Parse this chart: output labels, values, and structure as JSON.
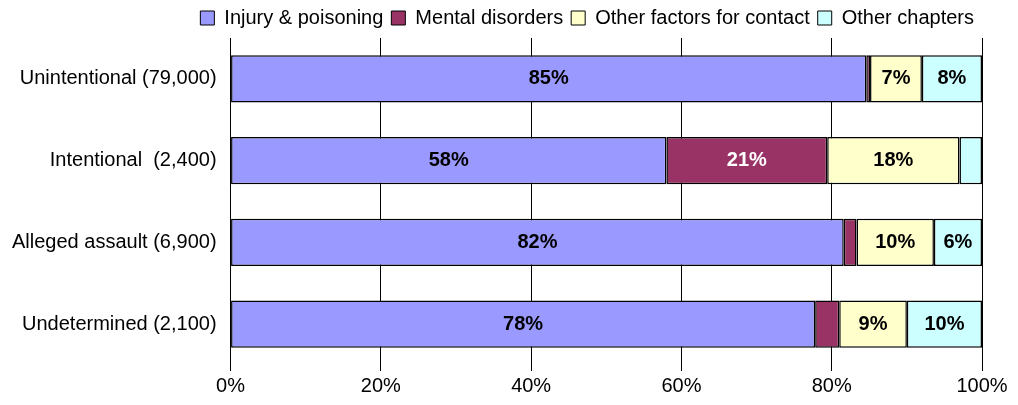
{
  "chart_data": {
    "type": "bar",
    "orientation": "horizontal",
    "stacked": true,
    "categories": [
      "Unintentional (79,000)",
      "Intentional  (2,400)",
      "Alleged assault (6,900)",
      "Undetermined (2,100)"
    ],
    "series": [
      {
        "name": "Injury & poisoning",
        "color": "#9999ff",
        "values": [
          84.6,
          58.0,
          81.6,
          77.8
        ],
        "value_labels": [
          "85%",
          "58%",
          "82%",
          "78%"
        ]
      },
      {
        "name": "Mental disorders",
        "color": "#993366",
        "values": [
          0.5,
          21.4,
          1.7,
          3.2
        ],
        "value_labels": [
          null,
          "21%",
          null,
          null
        ]
      },
      {
        "name": "Other factors for contact",
        "color": "#ffffcc",
        "values": [
          6.9,
          17.6,
          10.3,
          9.0
        ],
        "value_labels": [
          "7%",
          "18%",
          "10%",
          "9%"
        ]
      },
      {
        "name": "Other chapters",
        "color": "#ccffff",
        "values": [
          8.0,
          3.0,
          6.4,
          10.0
        ],
        "value_labels": [
          "8%",
          null,
          "6%",
          "10%"
        ]
      }
    ],
    "xlim": [
      0,
      100
    ],
    "xticks": [
      {
        "value": 0,
        "label": "0%"
      },
      {
        "value": 20,
        "label": "20%"
      },
      {
        "value": 40,
        "label": "40%"
      },
      {
        "value": 60,
        "label": "60%"
      },
      {
        "value": 80,
        "label": "80%"
      },
      {
        "value": 100,
        "label": "100%"
      }
    ],
    "grid": "x",
    "legend": "top"
  }
}
